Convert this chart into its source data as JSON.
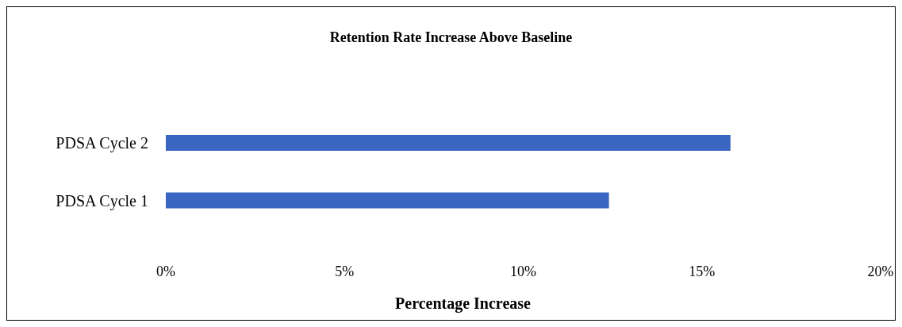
{
  "chart_data": {
    "type": "bar",
    "orientation": "horizontal",
    "title": "Retention Rate Increase Above Baseline",
    "xlabel": "Percentage Increase",
    "categories": [
      "PDSA Cycle 2",
      "PDSA Cycle 1"
    ],
    "values": [
      15.8,
      12.4
    ],
    "color": "#3a65c0",
    "xlim": [
      0,
      20
    ],
    "xticks": [
      {
        "value": 0,
        "label": "0%"
      },
      {
        "value": 5,
        "label": "5%"
      },
      {
        "value": 10,
        "label": "10%"
      },
      {
        "value": 15,
        "label": "15%"
      },
      {
        "value": 20,
        "label": "20%"
      }
    ],
    "grid": false,
    "legend": false
  }
}
